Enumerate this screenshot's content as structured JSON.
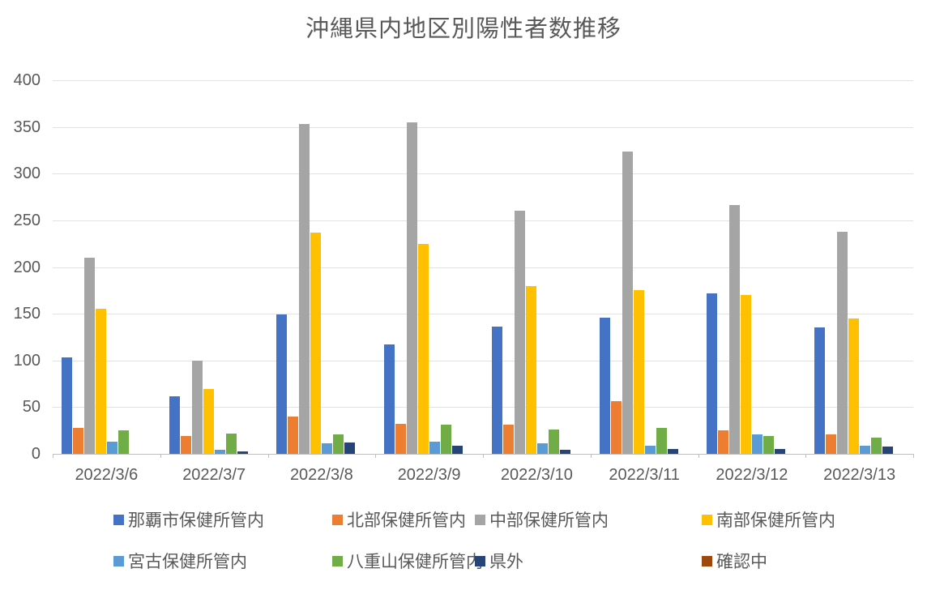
{
  "title": "沖縄県内地区別陽性者数推移",
  "chart_data": {
    "type": "bar",
    "title": "沖縄県内地区別陽性者数推移",
    "categories": [
      "2022/3/6",
      "2022/3/7",
      "2022/3/8",
      "2022/3/9",
      "2022/3/10",
      "2022/3/11",
      "2022/3/12",
      "2022/3/13"
    ],
    "series": [
      {
        "name": "那覇市保健所管内",
        "color": "#4472C4",
        "values": [
          103,
          62,
          149,
          117,
          136,
          146,
          172,
          135
        ]
      },
      {
        "name": "北部保健所管内",
        "color": "#ED7D31",
        "values": [
          28,
          19,
          40,
          32,
          31,
          56,
          25,
          21
        ]
      },
      {
        "name": "中部保健所管内",
        "color": "#A5A5A5",
        "values": [
          210,
          100,
          353,
          355,
          260,
          324,
          266,
          238
        ]
      },
      {
        "name": "南部保健所管内",
        "color": "#FFC000",
        "values": [
          155,
          69,
          237,
          225,
          180,
          175,
          170,
          145
        ]
      },
      {
        "name": "宮古保健所管内",
        "color": "#5B9BD5",
        "values": [
          13,
          4,
          11,
          13,
          11,
          9,
          21,
          9
        ]
      },
      {
        "name": "八重山保健所管内",
        "color": "#70AD47",
        "values": [
          25,
          22,
          21,
          31,
          26,
          28,
          19,
          17
        ]
      },
      {
        "name": "県外",
        "color": "#264478",
        "values": [
          0,
          3,
          12,
          9,
          4,
          5,
          5,
          8
        ]
      },
      {
        "name": "確認中",
        "color": "#9E480E",
        "values": [
          0,
          0,
          0,
          0,
          0,
          0,
          0,
          0
        ]
      }
    ],
    "ylim": [
      0,
      400
    ],
    "ytick_step": 50,
    "yticks": [
      0,
      50,
      100,
      150,
      200,
      250,
      300,
      350,
      400
    ],
    "grid": true,
    "legend_position": "bottom",
    "legend_rows": [
      [
        0,
        1,
        2,
        3
      ],
      [
        4,
        5,
        6,
        7
      ]
    ]
  }
}
